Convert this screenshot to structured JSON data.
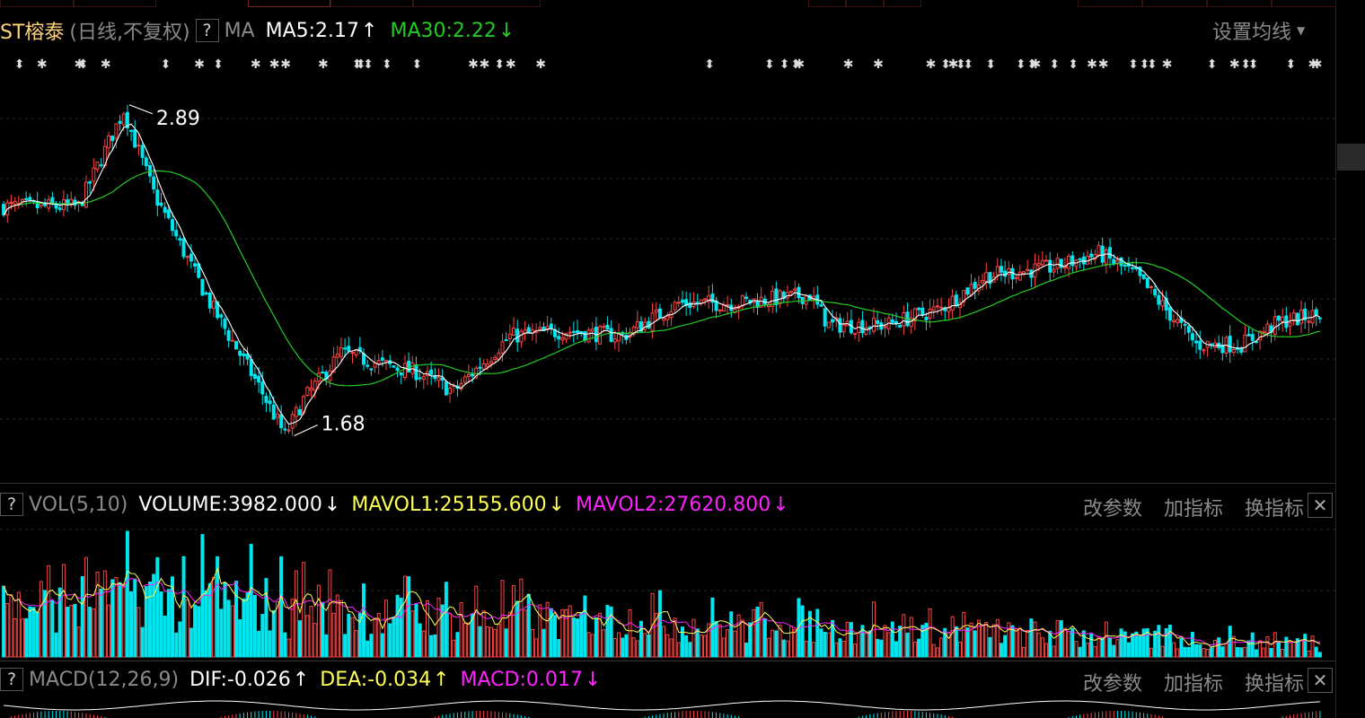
{
  "main": {
    "stock_name": "ST榕泰",
    "period": "(日线,不复权)",
    "help": "?",
    "indicator": "MA",
    "ma5": "MA5:2.17",
    "ma5_arrow": "↑",
    "ma30": "MA30:2.22",
    "ma30_arrow": "↓",
    "settings": "设置均线",
    "high_label": "2.89",
    "low_label": "1.68"
  },
  "vol": {
    "help": "?",
    "title": "VOL(5,10)",
    "volume": "VOLUME:3982.000",
    "volume_arrow": "↓",
    "mavol1": "MAVOL1:25155.600",
    "mavol1_arrow": "↓",
    "mavol2": "MAVOL2:27620.800",
    "mavol2_arrow": "↓",
    "btn_params": "改参数",
    "btn_add": "加指标",
    "btn_switch": "换指标",
    "close": "✕"
  },
  "macd": {
    "help": "?",
    "title": "MACD(12,26,9)",
    "dif": "DIF:-0.026",
    "dif_arrow": "↑",
    "dea": "DEA:-0.034",
    "dea_arrow": "↑",
    "macd": "MACD:0.017",
    "macd_arrow": "↓",
    "btn_params": "改参数",
    "btn_add": "加指标",
    "btn_switch": "换指标",
    "close": "✕"
  },
  "colors": {
    "up": "#ff4444",
    "down": "#00e5ee",
    "ma5": "#ffffff",
    "ma30": "#22cc22",
    "mavol1": "#ffff55",
    "mavol2": "#ff22ff"
  },
  "chart_data": {
    "type": "candlestick",
    "price_anchors": [
      {
        "x": 0,
        "y": 2.55
      },
      {
        "x": 20,
        "y": 2.55
      },
      {
        "x": 32,
        "y": 2.9
      },
      {
        "x": 40,
        "y": 2.6
      },
      {
        "x": 55,
        "y": 2.2
      },
      {
        "x": 68,
        "y": 1.9
      },
      {
        "x": 75,
        "y": 1.72
      },
      {
        "x": 80,
        "y": 1.85
      },
      {
        "x": 90,
        "y": 2.02
      },
      {
        "x": 100,
        "y": 1.98
      },
      {
        "x": 110,
        "y": 1.95
      },
      {
        "x": 120,
        "y": 1.88
      },
      {
        "x": 135,
        "y": 2.08
      },
      {
        "x": 150,
        "y": 2.1
      },
      {
        "x": 165,
        "y": 2.08
      },
      {
        "x": 180,
        "y": 2.2
      },
      {
        "x": 195,
        "y": 2.2
      },
      {
        "x": 215,
        "y": 2.23
      },
      {
        "x": 220,
        "y": 2.12
      },
      {
        "x": 235,
        "y": 2.12
      },
      {
        "x": 250,
        "y": 2.18
      },
      {
        "x": 262,
        "y": 2.3
      },
      {
        "x": 280,
        "y": 2.33
      },
      {
        "x": 292,
        "y": 2.38
      },
      {
        "x": 302,
        "y": 2.3
      },
      {
        "x": 318,
        "y": 2.05
      },
      {
        "x": 330,
        "y": 2.05
      },
      {
        "x": 340,
        "y": 2.13
      },
      {
        "x": 351,
        "y": 2.16
      }
    ],
    "day_count": 352,
    "high": 2.89,
    "low": 1.68
  }
}
